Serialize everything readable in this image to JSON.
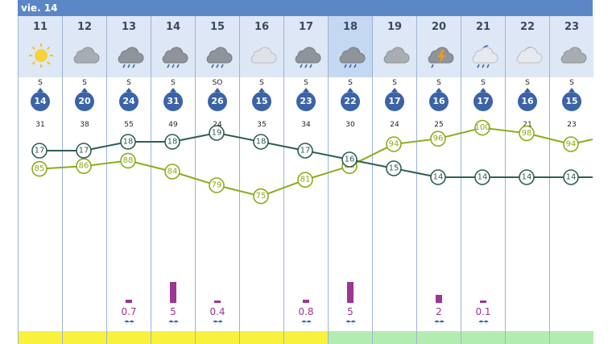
{
  "day_label": "vie. 14",
  "colors": {
    "temp": "#2f5e57",
    "humidity": "#8aad1a",
    "rain": "#9c3593",
    "footer_day": "#f8f23e",
    "footer_night": "#b3ecb1"
  },
  "hours": [
    {
      "hour": "11",
      "icon": "sun-icon",
      "wind_dir": "S",
      "wind": "14",
      "gust": "31",
      "temp": 17,
      "humidity": 85,
      "rain": 0,
      "rain_label": "",
      "highlight": false,
      "footer": "day"
    },
    {
      "hour": "12",
      "icon": "cloud-icon",
      "wind_dir": "S",
      "wind": "20",
      "gust": "38",
      "temp": 17,
      "humidity": 86,
      "rain": 0,
      "rain_label": "",
      "highlight": false,
      "footer": "day"
    },
    {
      "hour": "13",
      "icon": "cloud-rain-icon",
      "wind_dir": "S",
      "wind": "24",
      "gust": "55",
      "temp": 18,
      "humidity": 88,
      "rain": 0.7,
      "rain_label": "0.7",
      "highlight": false,
      "footer": "day"
    },
    {
      "hour": "14",
      "icon": "cloud-rain-icon",
      "wind_dir": "S",
      "wind": "31",
      "gust": "49",
      "temp": 18,
      "humidity": 84,
      "rain": 5,
      "rain_label": "5",
      "highlight": false,
      "footer": "day"
    },
    {
      "hour": "15",
      "icon": "cloud-rain-icon",
      "wind_dir": "SO",
      "wind": "26",
      "gust": "24",
      "temp": 19,
      "humidity": 79,
      "rain": 0.4,
      "rain_label": "0.4",
      "highlight": false,
      "footer": "day"
    },
    {
      "hour": "16",
      "icon": "cloud-light-icon",
      "wind_dir": "S",
      "wind": "15",
      "gust": "35",
      "temp": 18,
      "humidity": 75,
      "rain": 0,
      "rain_label": "",
      "highlight": false,
      "footer": "day"
    },
    {
      "hour": "17",
      "icon": "cloud-rain-icon",
      "wind_dir": "S",
      "wind": "23",
      "gust": "34",
      "temp": 17,
      "humidity": 81,
      "rain": 0.8,
      "rain_label": "0.8",
      "highlight": false,
      "footer": "day"
    },
    {
      "hour": "18",
      "icon": "cloud-rain-icon",
      "wind_dir": "S",
      "wind": "22",
      "gust": "30",
      "temp": 16,
      "humidity": 86,
      "rain": 5,
      "rain_label": "5",
      "highlight": true,
      "footer": "night"
    },
    {
      "hour": "19",
      "icon": "cloud-icon",
      "wind_dir": "S",
      "wind": "17",
      "gust": "24",
      "temp": 15,
      "humidity": 94,
      "rain": 0,
      "rain_label": "",
      "highlight": false,
      "footer": "night"
    },
    {
      "hour": "20",
      "icon": "storm-icon",
      "wind_dir": "S",
      "wind": "16",
      "gust": "25",
      "temp": 14,
      "humidity": 96,
      "rain": 2,
      "rain_label": "2",
      "highlight": false,
      "footer": "night"
    },
    {
      "hour": "21",
      "icon": "moon-rain-icon",
      "wind_dir": "S",
      "wind": "17",
      "gust": "26",
      "temp": 14,
      "humidity": 100,
      "rain": 0.1,
      "rain_label": "0.1",
      "highlight": false,
      "footer": "night"
    },
    {
      "hour": "22",
      "icon": "moon-cloud-icon",
      "wind_dir": "S",
      "wind": "16",
      "gust": "21",
      "temp": 14,
      "humidity": 98,
      "rain": 0,
      "rain_label": "",
      "highlight": false,
      "footer": "night"
    },
    {
      "hour": "23",
      "icon": "cloud-icon",
      "wind_dir": "S",
      "wind": "15",
      "gust": "23",
      "temp": 14,
      "humidity": 94,
      "rain": 0,
      "rain_label": "",
      "highlight": false,
      "footer": "night"
    }
  ]
}
